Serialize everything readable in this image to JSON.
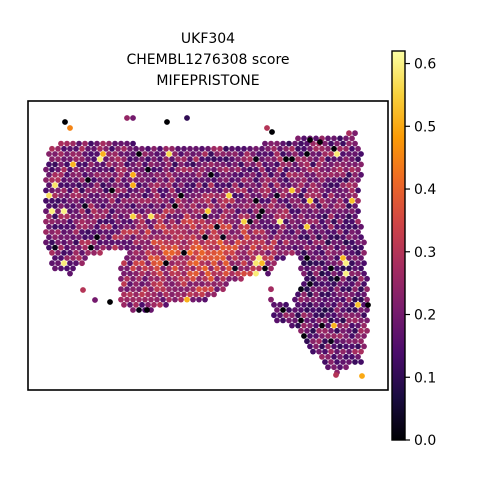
{
  "chart_data": {
    "type": "scatter",
    "title_lines": [
      "UKF304",
      "CHEMBL1276308 score",
      "MIFEPRISTONE"
    ],
    "xlabel": "",
    "ylabel": "",
    "grid": false,
    "colormap": "inferno",
    "colormap_stops": [
      "#000004",
      "#1b0c41",
      "#4a0c6b",
      "#781c6d",
      "#a52c60",
      "#cf4446",
      "#ed6925",
      "#fb9b06",
      "#f7d13d",
      "#fcffa4"
    ],
    "colorbar": {
      "location": "right",
      "vmin": 0.0,
      "vmax": 0.62,
      "ticks": [
        0.0,
        0.1,
        0.2,
        0.3,
        0.4,
        0.5,
        0.6
      ],
      "tick_labels": [
        "0.0",
        "0.1",
        "0.2",
        "0.3",
        "0.4",
        "0.5",
        "0.6"
      ]
    },
    "spots": {
      "description_of_tissue": "hexagonal spatial spots, mostly purple-to-orange scores, brighter orange core in lower center",
      "typical_score": 0.25,
      "score_range": [
        0.0,
        0.62
      ]
    }
  }
}
